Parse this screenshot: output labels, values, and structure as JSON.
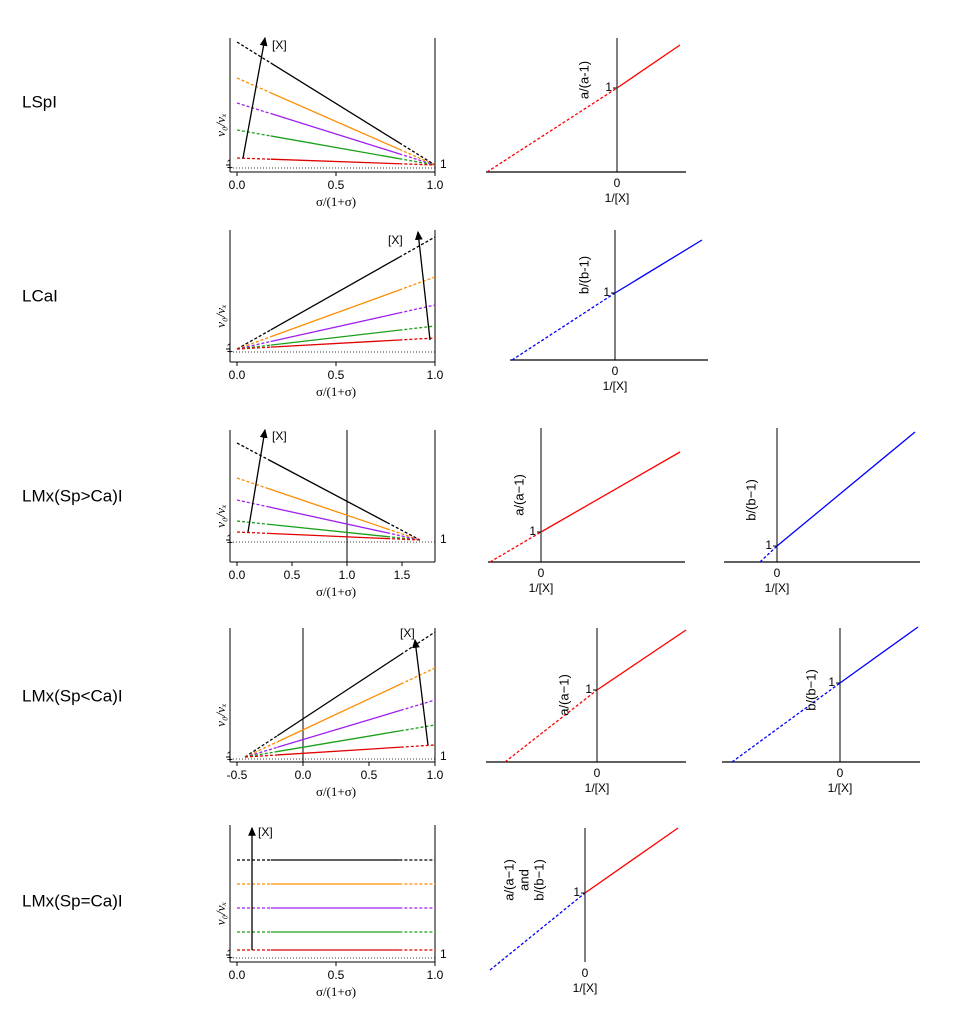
{
  "rows": [
    {
      "label": "LSpI",
      "left": {
        "xlim": [
          0,
          1
        ],
        "xticks": [
          {
            "value": 0,
            "label": "0.0"
          },
          {
            "value": 0.5,
            "label": "0.5"
          },
          {
            "value": 1,
            "label": "1.0"
          }
        ],
        "xlabel": "σ/(1+σ)",
        "ylabel": "v₀/vₓ",
        "arrow_label": "[X]",
        "one_left": "1",
        "one_right": "1"
      },
      "right": [
        {
          "ylabel": [
            {
              "text": "a/(a-1)",
              "color": "#ff0000"
            }
          ],
          "one": "1",
          "zero": "0",
          "xlabel": "1/[X]",
          "solid_color": "#ff0000",
          "dashed_color": "#ff0000"
        }
      ]
    },
    {
      "label": "LCaI",
      "left": {
        "xlim": [
          0,
          1
        ],
        "xticks": [
          {
            "value": 0,
            "label": "0.0"
          },
          {
            "value": 0.5,
            "label": "0.5"
          },
          {
            "value": 1,
            "label": "1.0"
          }
        ],
        "xlabel": "σ/(1+σ)",
        "ylabel": "v₀/vₓ",
        "arrow_label": "[X]",
        "one_left": "1"
      },
      "right": [
        {
          "ylabel": [
            {
              "text": "b/(b-1)",
              "color": "#0000ff"
            }
          ],
          "one": "1",
          "zero": "0",
          "xlabel": "1/[X]",
          "solid_color": "#0000ff",
          "dashed_color": "#0000ff"
        }
      ]
    },
    {
      "label": "LMx(Sp>Ca)I",
      "left": {
        "xlim": [
          0,
          1.8
        ],
        "xticks": [
          {
            "value": 0,
            "label": "0.0"
          },
          {
            "value": 0.5,
            "label": "0.5"
          },
          {
            "value": 1,
            "label": "1.0"
          },
          {
            "value": 1.5,
            "label": "1.5"
          }
        ],
        "xlabel": "σ/(1+σ)",
        "ylabel": "v₀/vₓ",
        "arrow_label": "[X]",
        "one_left": "1",
        "one_right": "1"
      },
      "right": [
        {
          "ylabel": [
            {
              "text": "a/(a−1)",
              "color": "#ff0000"
            }
          ],
          "one": "1",
          "zero": "0",
          "xlabel": "1/[X]",
          "solid_color": "#ff0000",
          "dashed_color": "#ff0000"
        },
        {
          "ylabel": [
            {
              "text": "b/(b−1)",
              "color": "#0000ff"
            }
          ],
          "one": "1",
          "zero": "0",
          "xlabel": "1/[X]",
          "solid_color": "#0000ff",
          "dashed_color": "#0000ff"
        }
      ]
    },
    {
      "label": "LMx(Sp<Ca)I",
      "left": {
        "xlim": [
          -0.5,
          1
        ],
        "xticks": [
          {
            "value": -0.5,
            "label": "-0.5"
          },
          {
            "value": 0,
            "label": "0.0"
          },
          {
            "value": 0.5,
            "label": "0.5"
          },
          {
            "value": 1,
            "label": "1.0"
          }
        ],
        "xlabel": "σ/(1+σ)",
        "ylabel": "v₀/vₓ",
        "arrow_label": "[X]",
        "one_left": "1",
        "one_right": "1"
      },
      "right": [
        {
          "ylabel": [
            {
              "text": "a/(a−1)",
              "color": "#ff0000"
            }
          ],
          "one": "1",
          "zero": "0",
          "xlabel": "1/[X]",
          "solid_color": "#ff0000",
          "dashed_color": "#ff0000"
        },
        {
          "ylabel": [
            {
              "text": "b/(b−1)",
              "color": "#0000ff"
            }
          ],
          "one": "1",
          "zero": "0",
          "xlabel": "1/[X]",
          "solid_color": "#0000ff",
          "dashed_color": "#0000ff"
        }
      ]
    },
    {
      "label": "LMx(Sp=Ca)I",
      "left": {
        "xlim": [
          0,
          1
        ],
        "xticks": [
          {
            "value": 0,
            "label": "0.0"
          },
          {
            "value": 0.5,
            "label": "0.5"
          },
          {
            "value": 1,
            "label": "1.0"
          }
        ],
        "xlabel": "σ/(1+σ)",
        "ylabel": "v₀/vₓ",
        "arrow_label": "[X]",
        "one_left": "1",
        "one_right": "1"
      },
      "right": [
        {
          "ylabel": [
            {
              "text": "a/(a−1)",
              "color": "#ff0000"
            },
            {
              "text": "and",
              "color": "#000000"
            },
            {
              "text": "b/(b−1)",
              "color": "#0000ff"
            }
          ],
          "one": "1",
          "zero": "0",
          "xlabel": "1/[X]",
          "solid_color": "#ff0000",
          "dashed_color": "#0000ff"
        }
      ]
    }
  ]
}
